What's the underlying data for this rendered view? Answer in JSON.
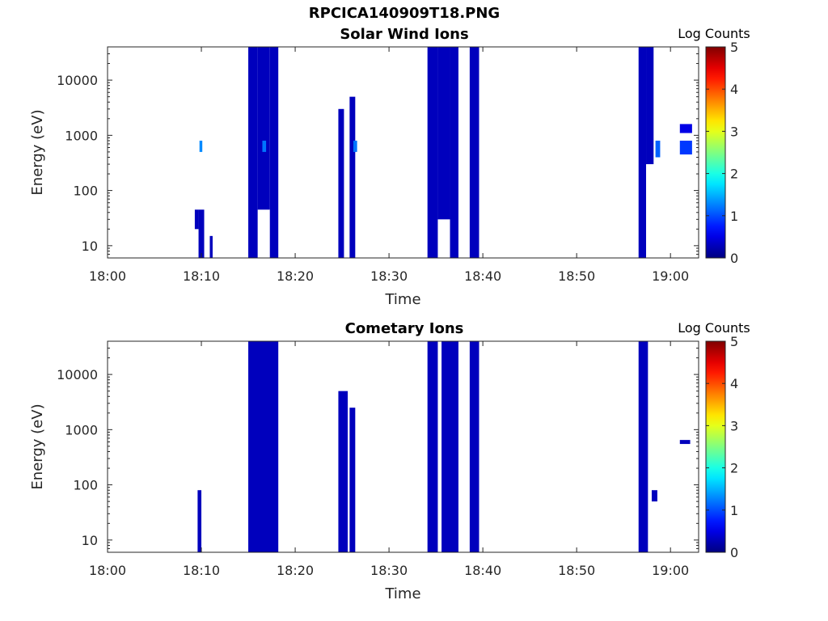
{
  "figure_title": "RPCICA140909T18.PNG",
  "chart_data": [
    {
      "type": "heatmap",
      "title": "Solar Wind Ions",
      "xlabel": "Time",
      "ylabel": "Energy (eV)",
      "xlim": [
        "18:00",
        "19:03"
      ],
      "ylim": [
        6,
        40000
      ],
      "yscale": "log",
      "xticks": [
        "18:00",
        "18:10",
        "18:20",
        "18:30",
        "18:40",
        "18:50",
        "19:00"
      ],
      "yticks": [
        "10",
        "100",
        "1000",
        "10000"
      ],
      "colorbar": {
        "label": "Log Counts",
        "range": [
          0,
          5
        ],
        "ticks": [
          "0",
          "1",
          "2",
          "3",
          "4",
          "5"
        ],
        "colormap": "jet"
      },
      "cells": [
        {
          "t0": "18:09.3",
          "t1": "18:09.7",
          "e0": 20,
          "e1": 45,
          "v": 0.3
        },
        {
          "t0": "18:09.7",
          "t1": "18:10.3",
          "e0": 6,
          "e1": 45,
          "v": 0.3
        },
        {
          "t0": "18:09.8",
          "t1": "18:10.1",
          "e0": 500,
          "e1": 800,
          "v": 1.3
        },
        {
          "t0": "18:10.9",
          "t1": "18:11.2",
          "e0": 6,
          "e1": 15,
          "v": 0.3
        },
        {
          "t0": "18:15.0",
          "t1": "18:16.0",
          "e0": 6,
          "e1": 40000,
          "v": 0.3
        },
        {
          "t0": "18:16.0",
          "t1": "18:17.3",
          "e0": 45,
          "e1": 40000,
          "v": 0.3
        },
        {
          "t0": "18:16.5",
          "t1": "18:16.9",
          "e0": 500,
          "e1": 800,
          "v": 1.2
        },
        {
          "t0": "18:17.3",
          "t1": "18:18.2",
          "e0": 6,
          "e1": 40000,
          "v": 0.3
        },
        {
          "t0": "18:24.6",
          "t1": "18:25.2",
          "e0": 6,
          "e1": 3000,
          "v": 0.3
        },
        {
          "t0": "18:25.8",
          "t1": "18:26.4",
          "e0": 6,
          "e1": 5000,
          "v": 0.3
        },
        {
          "t0": "18:26.2",
          "t1": "18:26.6",
          "e0": 500,
          "e1": 800,
          "v": 1.2
        },
        {
          "t0": "18:34.1",
          "t1": "18:35.2",
          "e0": 6,
          "e1": 40000,
          "v": 0.3
        },
        {
          "t0": "18:35.2",
          "t1": "18:36.5",
          "e0": 30,
          "e1": 40000,
          "v": 0.3
        },
        {
          "t0": "18:36.5",
          "t1": "18:37.4",
          "e0": 6,
          "e1": 40000,
          "v": 0.3
        },
        {
          "t0": "18:38.6",
          "t1": "18:39.6",
          "e0": 6,
          "e1": 40000,
          "v": 0.3
        },
        {
          "t0": "18:56.6",
          "t1": "18:57.4",
          "e0": 6,
          "e1": 40000,
          "v": 0.3
        },
        {
          "t0": "18:57.4",
          "t1": "18:58.2",
          "e0": 300,
          "e1": 40000,
          "v": 0.3
        },
        {
          "t0": "18:58.4",
          "t1": "18:58.9",
          "e0": 400,
          "e1": 800,
          "v": 1.1
        },
        {
          "t0": "19:01.0",
          "t1": "19:02.3",
          "e0": 1100,
          "e1": 1600,
          "v": 0.5
        },
        {
          "t0": "19:01.0",
          "t1": "19:02.3",
          "e0": 450,
          "e1": 800,
          "v": 0.9
        }
      ]
    },
    {
      "type": "heatmap",
      "title": "Cometary Ions",
      "xlabel": "Time",
      "ylabel": "Energy (eV)",
      "xlim": [
        "18:00",
        "19:03"
      ],
      "ylim": [
        6,
        40000
      ],
      "yscale": "log",
      "xticks": [
        "18:00",
        "18:10",
        "18:20",
        "18:30",
        "18:40",
        "18:50",
        "19:00"
      ],
      "yticks": [
        "10",
        "100",
        "1000",
        "10000"
      ],
      "colorbar": {
        "label": "Log Counts",
        "range": [
          0,
          5
        ],
        "ticks": [
          "0",
          "1",
          "2",
          "3",
          "4",
          "5"
        ],
        "colormap": "jet"
      },
      "cells": [
        {
          "t0": "18:09.6",
          "t1": "18:10.0",
          "e0": 6,
          "e1": 80,
          "v": 0.3
        },
        {
          "t0": "18:15.0",
          "t1": "18:18.2",
          "e0": 6,
          "e1": 40000,
          "v": 0.3
        },
        {
          "t0": "18:24.6",
          "t1": "18:25.6",
          "e0": 6,
          "e1": 5000,
          "v": 0.3
        },
        {
          "t0": "18:25.8",
          "t1": "18:26.4",
          "e0": 6,
          "e1": 2500,
          "v": 0.3
        },
        {
          "t0": "18:34.1",
          "t1": "18:35.2",
          "e0": 6,
          "e1": 40000,
          "v": 0.3
        },
        {
          "t0": "18:35.6",
          "t1": "18:37.4",
          "e0": 6,
          "e1": 40000,
          "v": 0.3
        },
        {
          "t0": "18:38.6",
          "t1": "18:39.6",
          "e0": 6,
          "e1": 40000,
          "v": 0.3
        },
        {
          "t0": "18:56.6",
          "t1": "18:57.6",
          "e0": 6,
          "e1": 40000,
          "v": 0.3
        },
        {
          "t0": "18:58.0",
          "t1": "18:58.6",
          "e0": 50,
          "e1": 80,
          "v": 0.3
        },
        {
          "t0": "19:01.0",
          "t1": "19:02.1",
          "e0": 550,
          "e1": 650,
          "v": 0.3
        }
      ]
    }
  ]
}
